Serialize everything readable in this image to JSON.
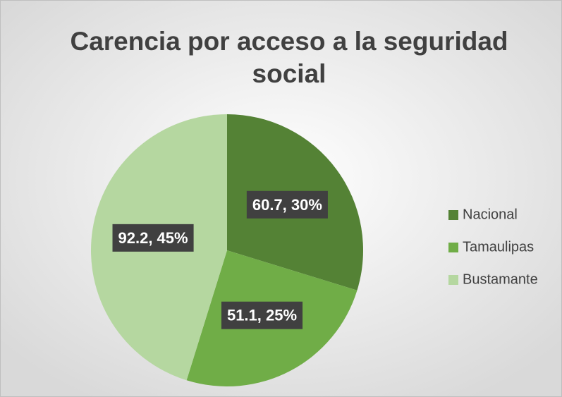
{
  "chart_data": {
    "type": "pie",
    "title": "Carencia por acceso a la seguridad social",
    "categories": [
      "Nacional",
      "Tamaulipas",
      "Bustamante"
    ],
    "values": [
      60.7,
      51.1,
      92.2
    ],
    "value_labels": [
      "60.7, 30%",
      "51.1, 25%",
      "92.2, 45%"
    ],
    "colors": [
      "#548235",
      "#70ad47",
      "#b5d7a0"
    ],
    "legend": "right"
  }
}
